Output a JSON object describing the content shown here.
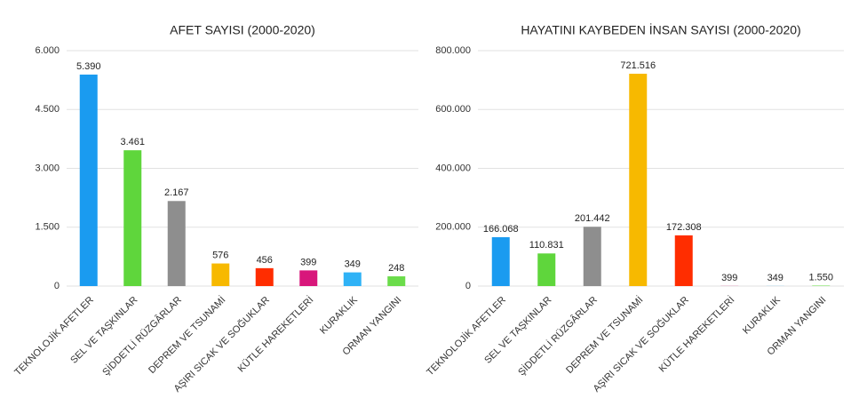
{
  "chart_data": [
    {
      "type": "bar",
      "title": "AFET SAYISI (2000-2020)",
      "categories": [
        "TEKNOLOJİK AFETLER",
        "SEL VE TAŞKINLAR",
        "ŞİDDETLİ RÜZGÂRLAR",
        "DEPREM VE TSUNAMİ",
        "AŞIRI SICAK VE SOĞUKLAR",
        "KÜTLE HAREKETLERİ",
        "KURAKLIK",
        "ORMAN YANGINI"
      ],
      "values": [
        5390,
        3461,
        2167,
        576,
        456,
        399,
        349,
        248
      ],
      "value_labels": [
        "5.390",
        "3.461",
        "2.167",
        "576",
        "456",
        "399",
        "349",
        "248"
      ],
      "colors": [
        "#1a9bf0",
        "#5fd63c",
        "#8e8e8e",
        "#f7b900",
        "#ff2d00",
        "#d8177b",
        "#2fb2f6",
        "#6bdc4b"
      ],
      "ylim": [
        0,
        6000
      ],
      "yticks": [
        0,
        {
          "value": 1500,
          "label": "1.500"
        },
        {
          "value": 3000,
          "label": "3.000"
        },
        {
          "value": 4500,
          "label": "4.500"
        },
        {
          "value": 6000,
          "label": "6.000"
        }
      ],
      "grid": true
    },
    {
      "type": "bar",
      "title": "HAYATINI KAYBEDEN İNSAN SAYISI (2000-2020)",
      "categories": [
        "TEKNOLOJİK AFETLER",
        "SEL VE TAŞKINLAR",
        "ŞİDDETLİ RÜZGÂRLAR",
        "DEPREM VE TSUNAMİ",
        "AŞIRI SICAK VE SOĞUKLAR",
        "KÜTLE HAREKETLERİ",
        "KURAKLIK",
        "ORMAN YANGINI"
      ],
      "values": [
        166068,
        110831,
        201442,
        721516,
        172308,
        399,
        349,
        1550
      ],
      "value_labels": [
        "166.068",
        "110.831",
        "201.442",
        "721.516",
        "172.308",
        "399",
        "349",
        "1.550"
      ],
      "colors": [
        "#1a9bf0",
        "#5fd63c",
        "#8e8e8e",
        "#f7b900",
        "#ff2d00",
        "#d8177b",
        "#2fb2f6",
        "#6bdc4b"
      ],
      "ylim": [
        0,
        800000
      ],
      "yticks": [
        0,
        {
          "value": 200000,
          "label": "200.000"
        },
        {
          "value": 400000,
          "label": "400.000"
        },
        {
          "value": 600000,
          "label": "600.000"
        },
        {
          "value": 800000,
          "label": "800.000"
        }
      ],
      "grid": true
    }
  ]
}
